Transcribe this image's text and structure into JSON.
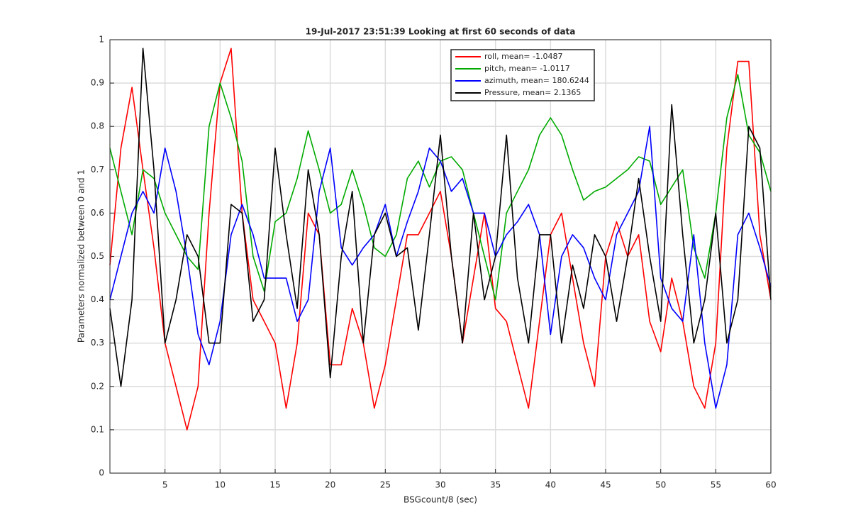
{
  "chart_data": {
    "type": "line",
    "title": "19-Jul-2017 23:51:39 Looking at first 60 seconds of data",
    "xlabel": "BSGcount/8 (sec)",
    "ylabel": "Parameters normalized between 0 and 1",
    "x": [
      0,
      1,
      2,
      3,
      4,
      5,
      6,
      7,
      8,
      9,
      10,
      11,
      12,
      13,
      14,
      15,
      16,
      17,
      18,
      19,
      20,
      21,
      22,
      23,
      24,
      25,
      26,
      27,
      28,
      29,
      30,
      31,
      32,
      33,
      34,
      35,
      36,
      37,
      38,
      39,
      40,
      41,
      42,
      43,
      44,
      45,
      46,
      47,
      48,
      49,
      50,
      51,
      52,
      53,
      54,
      55,
      56,
      57,
      58,
      59,
      60
    ],
    "series": [
      {
        "name": "roll, mean= -1.0487",
        "color": "#ff0000",
        "values": [
          0.48,
          0.75,
          0.89,
          0.7,
          0.52,
          0.3,
          0.2,
          0.1,
          0.2,
          0.6,
          0.9,
          0.98,
          0.6,
          0.4,
          0.35,
          0.3,
          0.15,
          0.3,
          0.6,
          0.55,
          0.25,
          0.25,
          0.38,
          0.3,
          0.15,
          0.25,
          0.4,
          0.55,
          0.55,
          0.6,
          0.65,
          0.5,
          0.3,
          0.45,
          0.6,
          0.38,
          0.35,
          0.25,
          0.15,
          0.35,
          0.55,
          0.6,
          0.45,
          0.3,
          0.2,
          0.5,
          0.58,
          0.5,
          0.55,
          0.35,
          0.28,
          0.45,
          0.35,
          0.2,
          0.15,
          0.3,
          0.75,
          0.95,
          0.95,
          0.55,
          0.4
        ]
      },
      {
        "name": "pitch, mean= -1.0117",
        "color": "#00aa00",
        "values": [
          0.75,
          0.65,
          0.55,
          0.7,
          0.68,
          0.6,
          0.55,
          0.5,
          0.47,
          0.8,
          0.9,
          0.82,
          0.72,
          0.5,
          0.42,
          0.58,
          0.6,
          0.68,
          0.79,
          0.7,
          0.6,
          0.62,
          0.7,
          0.62,
          0.52,
          0.5,
          0.55,
          0.68,
          0.72,
          0.66,
          0.72,
          0.73,
          0.7,
          0.6,
          0.5,
          0.4,
          0.6,
          0.65,
          0.7,
          0.78,
          0.82,
          0.78,
          0.7,
          0.63,
          0.65,
          0.66,
          0.68,
          0.7,
          0.73,
          0.72,
          0.62,
          0.66,
          0.7,
          0.52,
          0.45,
          0.6,
          0.82,
          0.92,
          0.78,
          0.74,
          0.65
        ]
      },
      {
        "name": "azimuth, mean= 180.6244",
        "color": "#0000ff",
        "values": [
          0.4,
          0.5,
          0.6,
          0.65,
          0.6,
          0.75,
          0.65,
          0.5,
          0.32,
          0.25,
          0.35,
          0.55,
          0.62,
          0.55,
          0.45,
          0.45,
          0.45,
          0.35,
          0.4,
          0.65,
          0.75,
          0.52,
          0.48,
          0.52,
          0.55,
          0.62,
          0.5,
          0.58,
          0.65,
          0.75,
          0.72,
          0.65,
          0.68,
          0.6,
          0.6,
          0.5,
          0.55,
          0.58,
          0.62,
          0.55,
          0.32,
          0.5,
          0.55,
          0.52,
          0.45,
          0.4,
          0.55,
          0.6,
          0.65,
          0.8,
          0.45,
          0.38,
          0.35,
          0.55,
          0.3,
          0.15,
          0.25,
          0.55,
          0.6,
          0.52,
          0.43
        ]
      },
      {
        "name": "Pressure, mean= 2.1365",
        "color": "#000000",
        "values": [
          0.38,
          0.2,
          0.4,
          0.98,
          0.7,
          0.3,
          0.4,
          0.55,
          0.5,
          0.3,
          0.3,
          0.62,
          0.6,
          0.35,
          0.4,
          0.75,
          0.55,
          0.38,
          0.7,
          0.55,
          0.22,
          0.5,
          0.65,
          0.3,
          0.55,
          0.6,
          0.5,
          0.52,
          0.33,
          0.55,
          0.78,
          0.5,
          0.3,
          0.6,
          0.4,
          0.5,
          0.78,
          0.45,
          0.3,
          0.55,
          0.55,
          0.3,
          0.48,
          0.38,
          0.55,
          0.5,
          0.35,
          0.5,
          0.68,
          0.5,
          0.35,
          0.85,
          0.55,
          0.3,
          0.4,
          0.6,
          0.3,
          0.4,
          0.8,
          0.75,
          0.4
        ]
      }
    ],
    "xlim": [
      0,
      60
    ],
    "xticks": [
      5,
      10,
      15,
      20,
      25,
      30,
      35,
      40,
      45,
      50,
      55,
      60
    ],
    "ylim": [
      0,
      1
    ],
    "yticks": [
      0,
      0.1,
      0.2,
      0.3,
      0.4,
      0.5,
      0.6,
      0.7,
      0.8,
      0.9,
      1
    ],
    "grid": true,
    "legend": "north-east"
  }
}
